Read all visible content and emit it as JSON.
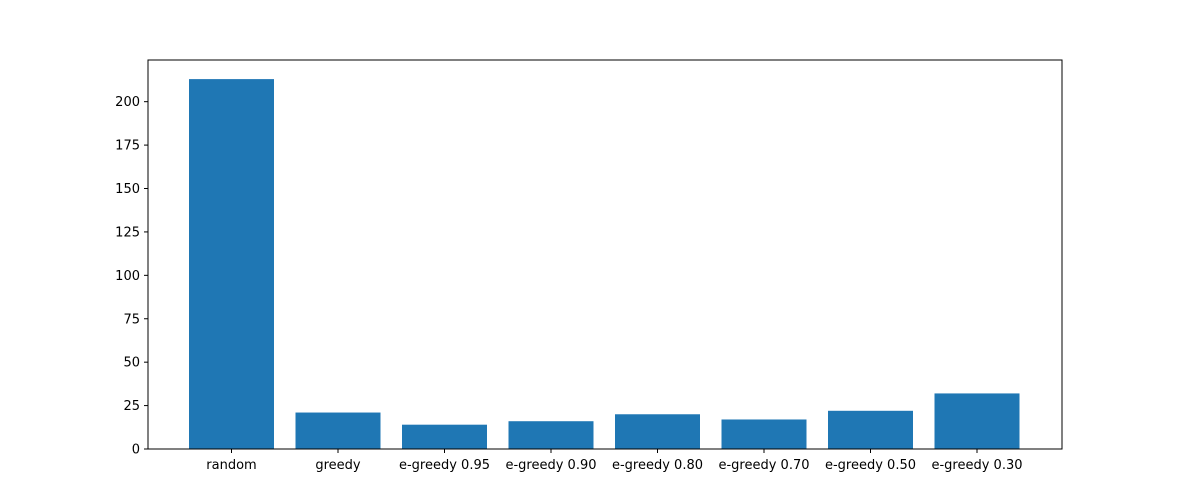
{
  "chart_data": {
    "type": "bar",
    "title": "",
    "xlabel": "",
    "ylabel": "",
    "categories": [
      "random",
      "greedy",
      "e-greedy 0.95",
      "e-greedy 0.90",
      "e-greedy 0.80",
      "e-greedy 0.70",
      "e-greedy 0.50",
      "e-greedy 0.30"
    ],
    "values": [
      213,
      21,
      14,
      16,
      20,
      17,
      22,
      32
    ],
    "ylim": [
      0,
      224
    ],
    "yticks": [
      0,
      25,
      50,
      75,
      100,
      125,
      150,
      175,
      200
    ],
    "bar_color": "#1f77b4",
    "grid": false,
    "legend": "none"
  }
}
